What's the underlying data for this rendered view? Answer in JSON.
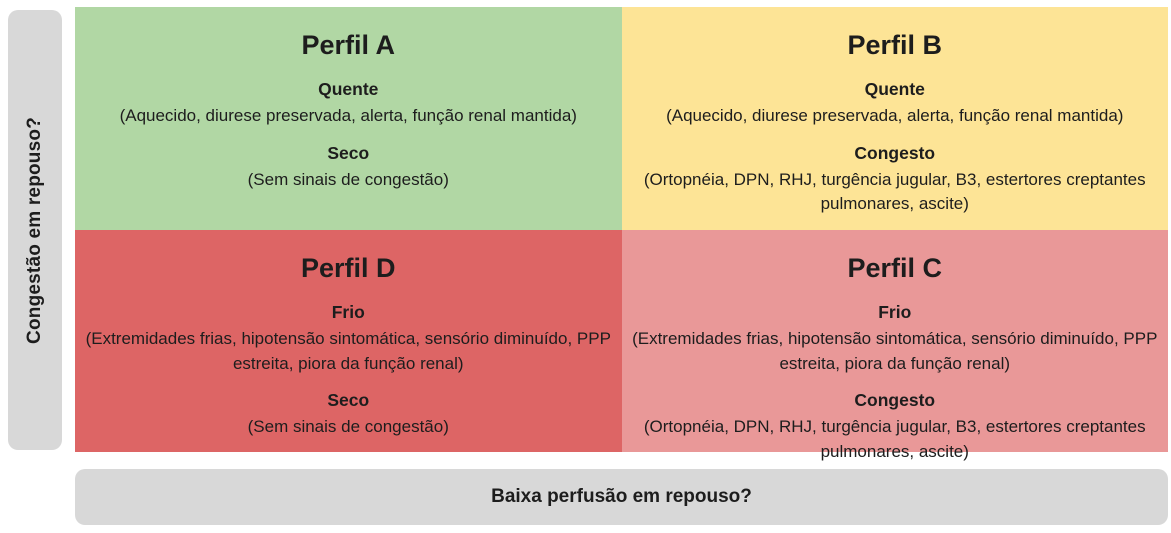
{
  "diagram": {
    "y_axis_label": "Congestão em repouso?",
    "x_axis_label": "Baixa perfusão em repouso?",
    "colors": {
      "axis_bar": "#d8d8d8",
      "text": "#1d1d1d",
      "quadrant_a": "#b1d7a4",
      "quadrant_b": "#fde496",
      "quadrant_c": "#e99898",
      "quadrant_d": "#dd6565"
    },
    "quadrants": {
      "a": {
        "title": "Perfil A",
        "color": "#b1d7a4",
        "sections": [
          {
            "heading": "Quente",
            "detail": "(Aquecido, diurese preservada, alerta, função renal mantida)"
          },
          {
            "heading": "Seco",
            "detail": "(Sem sinais de congestão)"
          }
        ]
      },
      "b": {
        "title": "Perfil B",
        "color": "#fde496",
        "sections": [
          {
            "heading": "Quente",
            "detail": "(Aquecido, diurese preservada, alerta, função renal mantida)"
          },
          {
            "heading": "Congesto",
            "detail": "(Ortopnéia, DPN, RHJ, turgência jugular, B3, estertores creptantes pulmonares, ascite)"
          }
        ]
      },
      "d": {
        "title": "Perfil D",
        "color": "#dd6565",
        "sections": [
          {
            "heading": "Frio",
            "detail": "(Extremidades frias, hipotensão sintomática, sensório diminuído, PPP estreita, piora da função renal)"
          },
          {
            "heading": "Seco",
            "detail": "(Sem sinais de congestão)"
          }
        ]
      },
      "c": {
        "title": "Perfil C",
        "color": "#e99898",
        "sections": [
          {
            "heading": "Frio",
            "detail": "(Extremidades frias, hipotensão sintomática, sensório diminuído, PPP estreita, piora da função renal)"
          },
          {
            "heading": "Congesto",
            "detail": "(Ortopnéia, DPN, RHJ, turgência jugular, B3, estertores creptantes pulmonares, ascite)"
          }
        ]
      }
    }
  }
}
